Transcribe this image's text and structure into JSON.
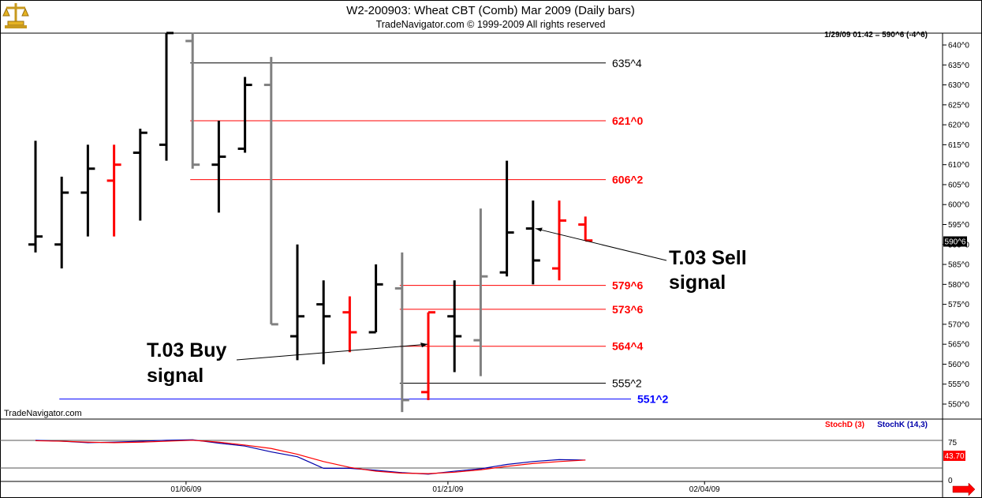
{
  "header": {
    "title": "W2-200903:  Wheat CBT (Comb) Mar 2009  (Daily bars)",
    "copyright": "TradeNavigator.com © 1999-2009 All rights reserved",
    "timestamp": "1/29/09 01:42 = 590^6 (-4^6)"
  },
  "watermark": "TradeNavigator.com",
  "logo_icon": "scales-icon",
  "colors": {
    "up": "#000000",
    "down": "#ff0000",
    "neutral": "#808080",
    "stochD": "#ff0000",
    "stochK": "#0000aa",
    "level_black": "#000000",
    "level_red": "#ff0000",
    "level_blue": "#0000ff"
  },
  "chart_data": {
    "type": "ohlc",
    "price_axis": {
      "min": 547,
      "max": 643,
      "ticks": [
        550,
        555,
        560,
        565,
        570,
        575,
        580,
        585,
        590,
        595,
        600,
        605,
        610,
        615,
        620,
        625,
        630,
        635,
        640
      ],
      "tick_suffix": "^0"
    },
    "current_price_label": "590^6",
    "date_labels": [
      {
        "label": "01/06/09",
        "index": 5.9
      },
      {
        "label": "01/21/09",
        "index": 15.9
      },
      {
        "label": "02/04/09",
        "index": 25.7
      }
    ],
    "bars": [
      {
        "o": 590,
        "h": 616,
        "l": 588,
        "c": 592,
        "color": "black"
      },
      {
        "o": 590,
        "h": 607,
        "l": 584,
        "c": 603,
        "color": "black"
      },
      {
        "o": 603,
        "h": 615,
        "l": 592,
        "c": 609,
        "color": "black"
      },
      {
        "o": 606,
        "h": 615,
        "l": 592,
        "c": 610,
        "color": "red"
      },
      {
        "o": 613,
        "h": 619,
        "l": 596,
        "c": 618,
        "color": "black"
      },
      {
        "o": 615,
        "h": 643,
        "l": 611,
        "c": 643,
        "color": "black"
      },
      {
        "o": 641,
        "h": 643,
        "l": 609,
        "c": 610,
        "color": "gray"
      },
      {
        "o": 610,
        "h": 621,
        "l": 598,
        "c": 612,
        "color": "black"
      },
      {
        "o": 614,
        "h": 632,
        "l": 613,
        "c": 630,
        "color": "black"
      },
      {
        "o": 630,
        "h": 637,
        "l": 570,
        "c": 570,
        "color": "gray"
      },
      {
        "o": 567,
        "h": 590,
        "l": 561,
        "c": 572,
        "color": "black"
      },
      {
        "o": 575,
        "h": 581,
        "l": 560,
        "c": 572,
        "color": "black"
      },
      {
        "o": 573,
        "h": 577,
        "l": 563,
        "c": 568,
        "color": "red"
      },
      {
        "o": 568,
        "h": 585,
        "l": 568,
        "c": 580,
        "color": "black"
      },
      {
        "o": 579,
        "h": 588,
        "l": 548,
        "c": 551,
        "color": "gray"
      },
      {
        "o": 553,
        "h": 573,
        "l": 551,
        "c": 573,
        "color": "red"
      },
      {
        "o": 572,
        "h": 581,
        "l": 558,
        "c": 567,
        "color": "black"
      },
      {
        "o": 566,
        "h": 599,
        "l": 557,
        "c": 582,
        "color": "gray"
      },
      {
        "o": 583,
        "h": 611,
        "l": 582,
        "c": 593,
        "color": "black"
      },
      {
        "o": 594,
        "h": 601,
        "l": 580,
        "c": 586,
        "color": "black"
      },
      {
        "o": 584,
        "h": 601,
        "l": 581,
        "c": 596,
        "color": "red"
      },
      {
        "o": 595,
        "h": 597,
        "l": 591,
        "c": 591,
        "color": "red"
      }
    ],
    "levels": [
      {
        "label": "635^4",
        "value": 635.5,
        "color": "black",
        "from_index": 6
      },
      {
        "label": "621^0",
        "value": 621,
        "color": "red",
        "from_index": 6
      },
      {
        "label": "606^2",
        "value": 606.25,
        "color": "red",
        "from_index": 6
      },
      {
        "label": "579^6",
        "value": 579.75,
        "color": "red",
        "from_index": 14
      },
      {
        "label": "573^6",
        "value": 573.75,
        "color": "red",
        "from_index": 14
      },
      {
        "label": "564^4",
        "value": 564.5,
        "color": "red",
        "from_index": 14
      },
      {
        "label": "555^2",
        "value": 555.25,
        "color": "black",
        "from_index": 14
      },
      {
        "label": "551^2",
        "value": 551.25,
        "color": "blue",
        "from_index": 1
      }
    ],
    "annotations": [
      {
        "line1": "T.03 Buy",
        "line2": "signal",
        "target_index": 15,
        "target_price": 565
      },
      {
        "line1": "T.03 Sell",
        "line2": "signal",
        "target_index": 19,
        "target_price": 594
      }
    ],
    "stochastic": {
      "legend_d": "StochD (3)",
      "legend_k": "StochK (14,3)",
      "range": [
        0,
        100
      ],
      "ticks": [
        0,
        75
      ],
      "reference_line": 25,
      "current_label": "43.70",
      "stochD": [
        83,
        82,
        80,
        79,
        80,
        82,
        84,
        80,
        74,
        67,
        55,
        40,
        28,
        20,
        16,
        15,
        18,
        23,
        30,
        36,
        40,
        43
      ],
      "stochK": [
        84,
        82,
        79,
        80,
        82,
        84,
        85,
        78,
        72,
        60,
        50,
        26,
        26,
        22,
        17,
        14,
        20,
        25,
        34,
        40,
        44,
        43
      ]
    }
  }
}
